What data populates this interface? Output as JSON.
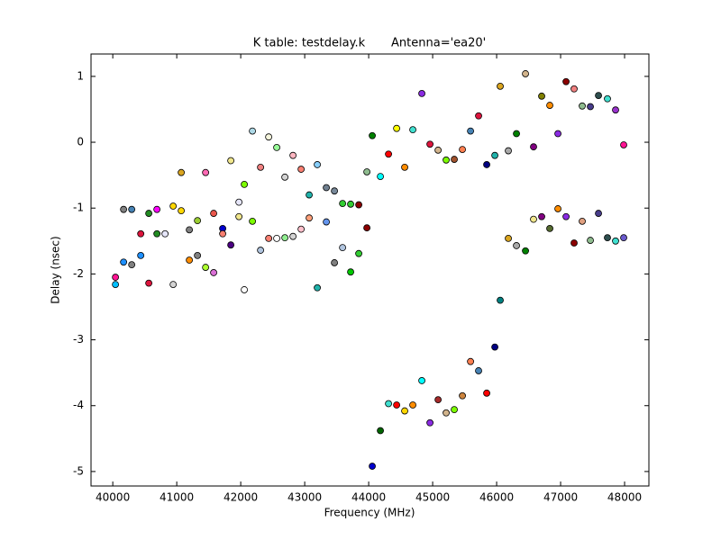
{
  "chart_data": {
    "type": "scatter",
    "title": "K table: testdelay.k       Antenna='ea20'",
    "xlabel": "Frequency (MHz)",
    "ylabel": "Delay (nsec)",
    "xlim": [
      39660,
      48380
    ],
    "ylim": [
      -5.22,
      1.34
    ],
    "xticks": [
      40000,
      41000,
      42000,
      43000,
      44000,
      45000,
      46000,
      47000,
      48000
    ],
    "yticks": [
      -5,
      -4,
      -3,
      -2,
      -1,
      0,
      1
    ],
    "x": [
      40042,
      40042,
      40169,
      40169,
      40296,
      40296,
      40437,
      40437,
      40563,
      40563,
      40690,
      40690,
      40817,
      40944,
      40944,
      41070,
      41070,
      41197,
      41197,
      41324,
      41324,
      41451,
      41451,
      41577,
      41577,
      41718,
      41718,
      41845,
      41845,
      41972,
      41972,
      42056,
      42056,
      42183,
      42183,
      42310,
      42310,
      42437,
      42437,
      42563,
      42563,
      42690,
      42690,
      42817,
      42817,
      42944,
      42944,
      43070,
      43070,
      43197,
      43197,
      43338,
      43338,
      43465,
      43465,
      43592,
      43592,
      43718,
      43718,
      43845,
      43845,
      43972,
      43972,
      44056,
      44056,
      44183,
      44183,
      44310,
      44310,
      44437,
      44437,
      44563,
      44563,
      44690,
      44690,
      44831,
      44831,
      44958,
      44958,
      45085,
      45085,
      45211,
      45211,
      45338,
      45338,
      45465,
      45465,
      45592,
      45592,
      45718,
      45718,
      45845,
      45845,
      45972,
      45972,
      46056,
      46056,
      46183,
      46183,
      46310,
      46310,
      46451,
      46451,
      46577,
      46577,
      46704,
      46704,
      46831,
      46831,
      46958,
      46958,
      47085,
      47085,
      47211,
      47211,
      47338,
      47338,
      47465,
      47465,
      47592,
      47592,
      47732,
      47732,
      47859,
      47859,
      47986,
      47986
    ],
    "values": [
      -2.05,
      -2.16,
      -1.02,
      -1.82,
      -1.02,
      -1.86,
      -1.39,
      -1.72,
      -1.08,
      -2.14,
      -1.02,
      -1.39,
      -1.39,
      -0.97,
      -2.16,
      -0.46,
      -1.04,
      -1.33,
      -1.79,
      -1.19,
      -1.72,
      -0.46,
      -1.9,
      -1.08,
      -1.98,
      -1.31,
      -1.39,
      -0.28,
      -1.56,
      -0.91,
      -1.13,
      -0.64,
      -2.24,
      0.17,
      -1.2,
      -0.38,
      -1.64,
      0.08,
      -1.46,
      -0.08,
      -1.46,
      -0.53,
      -1.45,
      -0.2,
      -1.43,
      -0.41,
      -1.32,
      -0.8,
      -1.15,
      -0.34,
      -2.21,
      -0.69,
      -1.21,
      -0.74,
      -1.83,
      -0.93,
      -1.6,
      -0.94,
      -1.97,
      -0.95,
      -1.69,
      -0.45,
      -1.3,
      0.1,
      -4.92,
      -0.52,
      -4.38,
      -0.18,
      -3.97,
      0.21,
      -3.99,
      -0.38,
      -4.08,
      0.19,
      -3.99,
      0.74,
      -3.62,
      -0.03,
      -4.26,
      -0.12,
      -3.91,
      -0.27,
      -4.11,
      -0.26,
      -4.06,
      -0.11,
      -3.85,
      0.17,
      -3.33,
      0.4,
      -3.47,
      -0.34,
      -3.81,
      -0.2,
      -3.11,
      0.85,
      -2.4,
      -0.13,
      -1.46,
      0.13,
      -1.57,
      1.04,
      -1.65,
      -0.07,
      -1.17,
      0.7,
      -1.13,
      0.56,
      -1.31,
      0.13,
      -1.01,
      0.92,
      -1.13,
      0.81,
      -1.53,
      0.55,
      -1.2,
      0.54,
      -1.49,
      0.71,
      -1.08,
      0.66,
      -1.45,
      0.49,
      -1.5,
      -0.04,
      -1.45
    ],
    "colors": [
      "#ff1493",
      "#00bfff",
      "#808080",
      "#1e90ff",
      "#4682b4",
      "#808080",
      "#dc143c",
      "#1e90ff",
      "#228b22",
      "#dc143c",
      "#ff00ff",
      "#228b22",
      "#e6e6fa",
      "#ffd700",
      "#d3d3d3",
      "#daa520",
      "#ffd700",
      "#808080",
      "#ff8c00",
      "#9acd32",
      "#808080",
      "#ff69b4",
      "#adff2f",
      "#e9564b",
      "#da70d6",
      "#0000cd",
      "#fa8072",
      "#f0e68c",
      "#4b0082",
      "#e6e6fa",
      "#f0e68c",
      "#7cfc00",
      "#ffffff",
      "#add8e6",
      "#7cfc00",
      "#f08080",
      "#b0c4de",
      "#f5f5dc",
      "#fa8072",
      "#98fb98",
      "#ffffff",
      "#d3d3d3",
      "#90ee90",
      "#ffb6c1",
      "#d3d3d3",
      "#fa8072",
      "#ffc0cb",
      "#20b2aa",
      "#ffa07a",
      "#87cefa",
      "#20b2aa",
      "#708090",
      "#6495ed",
      "#778899",
      "#808080",
      "#32cd32",
      "#b0c4de",
      "#32cd32",
      "#00c800",
      "#8b0000",
      "#32cd32",
      "#8fbc8f",
      "#8b0000",
      "#008000",
      "#0000cd",
      "#00ffff",
      "#006400",
      "#ff0000",
      "#40e0d0",
      "#ffff00",
      "#ff0000",
      "#ff8c00",
      "#ffd700",
      "#40e0d0",
      "#ff8c00",
      "#8a2be2",
      "#00ffff",
      "#dc143c",
      "#8a2be2",
      "#d2b48c",
      "#a52a2a",
      "#7cfc00",
      "#d2b48c",
      "#a0522d",
      "#7cfc00",
      "#ff7f50",
      "#cd853f",
      "#4682b4",
      "#ff7f50",
      "#dc143c",
      "#4682b4",
      "#000080",
      "#ff0000",
      "#20b2aa",
      "#000080",
      "#daa520",
      "#008080",
      "#a9a9a9",
      "#daa520",
      "#008000",
      "#a9a9a9",
      "#d2b48c",
      "#008000",
      "#800080",
      "#f0e68c",
      "#808000",
      "#800080",
      "#ff8c00",
      "#556b2f",
      "#8a2be2",
      "#ff8c00",
      "#8b0000",
      "#8a2be2",
      "#f08080",
      "#8b0000",
      "#8fbc8f",
      "#e0a080",
      "#483d8b",
      "#8fbc8f",
      "#2f4f4f",
      "#483d8b",
      "#40e0d0",
      "#2f4f4f",
      "#9932cc",
      "#40e0d0",
      "#ff1493",
      "#6a5acd"
    ]
  }
}
